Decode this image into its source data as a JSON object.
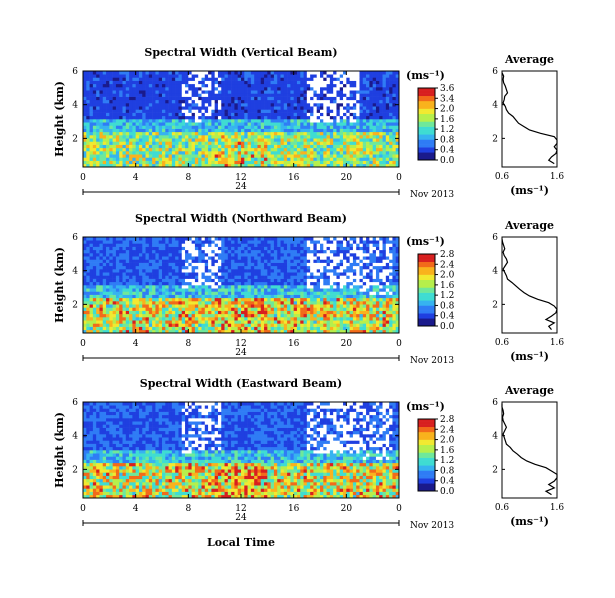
{
  "colors": {
    "palette": [
      "#1a1a8c",
      "#1f3fe0",
      "#2f7cf5",
      "#36b3f0",
      "#3fdcd2",
      "#6fe89a",
      "#b6ef4c",
      "#f1e930",
      "#f9b21d",
      "#f26a1a",
      "#d81f1f"
    ],
    "missing": "#ffffff",
    "line": "#000000"
  },
  "chart_data": [
    {
      "type": "heatmap",
      "title": "Spectral Width (Vertical Beam)",
      "ylabel": "Height (km)",
      "xlabel": "",
      "x_ticks": [
        "0",
        "4",
        "8",
        "12",
        "16",
        "20",
        "0"
      ],
      "y_ticks": [
        "6",
        "4",
        "2"
      ],
      "xlim": [
        0,
        24
      ],
      "ylim": [
        0.3,
        6.0
      ],
      "date_marker": "24",
      "date_label": "Nov 2013",
      "colorbar": {
        "unit": "(ms⁻¹)",
        "ticks": [
          "3.6",
          "3.4",
          "2.0",
          "1.6",
          "1.2",
          "0.8",
          "0.4",
          "0.0"
        ],
        "range": [
          0.0,
          3.6
        ]
      },
      "field_description": [
        {
          "height_range": [
            0.3,
            2.3
          ],
          "typical_value": 2.0
        },
        {
          "height_range": [
            2.3,
            3.2
          ],
          "typical_value": 1.2
        },
        {
          "height_range": [
            3.2,
            6.0
          ],
          "typical_value": 0.5
        }
      ],
      "average_profile": {
        "title": "Average",
        "xlabel": "(ms⁻¹)",
        "x_ticks": [
          "0.6",
          "1.6"
        ],
        "y_ticks": [
          "6",
          "4",
          "2"
        ],
        "xlim": [
          0.6,
          1.6
        ],
        "ylim": [
          0.3,
          6.0
        ],
        "height": [
          0.5,
          0.7,
          0.9,
          1.1,
          1.3,
          1.5,
          1.7,
          1.9,
          2.1,
          2.3,
          2.5,
          2.7,
          2.9,
          3.1,
          3.3,
          3.5,
          3.7,
          3.9,
          4.1,
          4.3,
          4.5,
          4.7,
          4.9,
          5.1,
          5.3,
          5.5,
          5.7,
          5.9
        ],
        "width": [
          1.55,
          1.45,
          1.5,
          1.58,
          1.6,
          1.55,
          1.6,
          1.6,
          1.55,
          1.3,
          1.1,
          1.0,
          0.9,
          0.85,
          0.8,
          0.72,
          0.68,
          0.66,
          0.62,
          0.64,
          0.65,
          0.7,
          0.68,
          0.66,
          0.63,
          0.62,
          0.63,
          0.6
        ]
      }
    },
    {
      "type": "heatmap",
      "title": "Spectral Width (Northward Beam)",
      "ylabel": "Height (km)",
      "xlabel": "",
      "x_ticks": [
        "0",
        "4",
        "8",
        "12",
        "16",
        "20",
        "0"
      ],
      "y_ticks": [
        "6",
        "4",
        "2"
      ],
      "xlim": [
        0,
        24
      ],
      "ylim": [
        0.3,
        6.0
      ],
      "date_marker": "24",
      "date_label": "Nov 2013",
      "colorbar": {
        "unit": "(ms⁻¹)",
        "ticks": [
          "2.8",
          "2.4",
          "2.0",
          "1.6",
          "1.2",
          "0.8",
          "0.4",
          "0.0"
        ],
        "range": [
          0.0,
          2.8
        ]
      },
      "field_description": [
        {
          "height_range": [
            0.3,
            2.3
          ],
          "typical_value": 1.8
        },
        {
          "height_range": [
            2.3,
            3.2
          ],
          "typical_value": 1.0
        },
        {
          "height_range": [
            3.2,
            6.0
          ],
          "typical_value": 0.5
        }
      ],
      "average_profile": {
        "title": "Average",
        "xlabel": "(ms⁻¹)",
        "x_ticks": [
          "0.6",
          "1.6"
        ],
        "y_ticks": [
          "6",
          "4",
          "2"
        ],
        "xlim": [
          0.6,
          1.6
        ],
        "ylim": [
          0.3,
          6.0
        ],
        "height": [
          0.5,
          0.7,
          0.9,
          1.1,
          1.3,
          1.5,
          1.7,
          1.9,
          2.1,
          2.3,
          2.5,
          2.7,
          2.9,
          3.1,
          3.3,
          3.5,
          3.7,
          3.9,
          4.1,
          4.3,
          4.5,
          4.7,
          4.9,
          5.1,
          5.3,
          5.5,
          5.7,
          5.9
        ],
        "width": [
          1.5,
          1.45,
          1.55,
          1.4,
          1.5,
          1.58,
          1.6,
          1.55,
          1.45,
          1.25,
          1.1,
          1.0,
          0.92,
          0.85,
          0.78,
          0.7,
          0.68,
          0.65,
          0.62,
          0.66,
          0.7,
          0.68,
          0.64,
          0.62,
          0.65,
          0.63,
          0.61,
          0.6
        ]
      }
    },
    {
      "type": "heatmap",
      "title": "Spectral Width (Eastward Beam)",
      "ylabel": "Height (km)",
      "xlabel": "Local Time",
      "x_ticks": [
        "0",
        "4",
        "8",
        "12",
        "16",
        "20",
        "0"
      ],
      "y_ticks": [
        "6",
        "4",
        "2"
      ],
      "xlim": [
        0,
        24
      ],
      "ylim": [
        0.3,
        6.0
      ],
      "date_marker": "24",
      "date_label": "Nov 2013",
      "colorbar": {
        "unit": "(ms⁻¹)",
        "ticks": [
          "2.8",
          "2.4",
          "2.0",
          "1.6",
          "1.2",
          "0.8",
          "0.4",
          "0.0"
        ],
        "range": [
          0.0,
          2.8
        ]
      },
      "field_description": [
        {
          "height_range": [
            0.3,
            2.3
          ],
          "typical_value": 1.8
        },
        {
          "height_range": [
            2.3,
            3.2
          ],
          "typical_value": 1.0
        },
        {
          "height_range": [
            3.2,
            6.0
          ],
          "typical_value": 0.5
        }
      ],
      "average_profile": {
        "title": "Average",
        "xlabel": "(ms⁻¹)",
        "x_ticks": [
          "0.6",
          "1.6"
        ],
        "y_ticks": [
          "6",
          "4",
          "2"
        ],
        "xlim": [
          0.6,
          1.6
        ],
        "ylim": [
          0.3,
          6.0
        ],
        "height": [
          0.5,
          0.7,
          0.9,
          1.1,
          1.3,
          1.5,
          1.7,
          1.9,
          2.1,
          2.3,
          2.5,
          2.7,
          2.9,
          3.1,
          3.3,
          3.5,
          3.7,
          3.9,
          4.1,
          4.3,
          4.5,
          4.7,
          4.9,
          5.1,
          5.3,
          5.5,
          5.7,
          5.9
        ],
        "width": [
          1.5,
          1.4,
          1.55,
          1.45,
          1.55,
          1.6,
          1.6,
          1.5,
          1.4,
          1.2,
          1.05,
          0.95,
          0.88,
          0.8,
          0.75,
          0.68,
          0.66,
          0.64,
          0.62,
          0.65,
          0.68,
          0.65,
          0.62,
          0.61,
          0.63,
          0.62,
          0.6,
          0.6
        ]
      }
    }
  ]
}
